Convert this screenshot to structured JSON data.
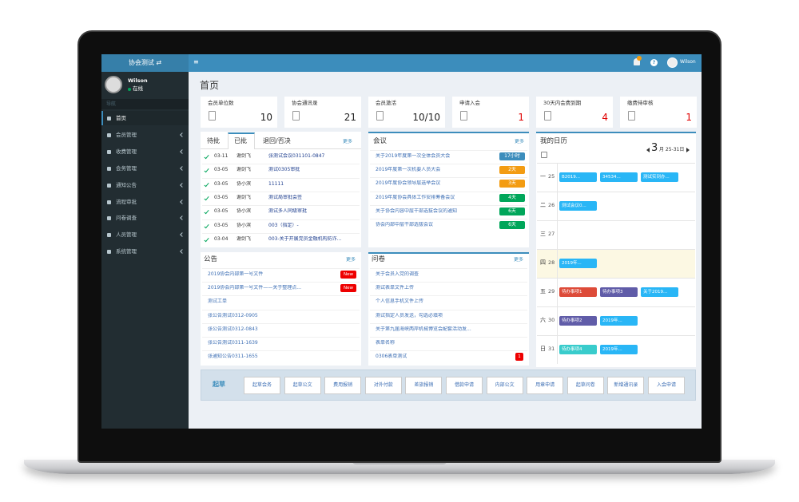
{
  "topbar": {
    "brand": "协会测试 ⇄",
    "menu_icon": "≡",
    "help_icon": "?",
    "user": "Wilson"
  },
  "sidebar": {
    "user": "Wilson",
    "status": "在线",
    "section": "导航",
    "menu": [
      "首页",
      "会员管理",
      "收费管理",
      "会务管理",
      "通知公告",
      "流程审批",
      "问卷调查",
      "人员管理",
      "系统管理"
    ]
  },
  "page_title": "首页",
  "stats": [
    {
      "label": "会员单位数",
      "value": "10",
      "color": "#222222"
    },
    {
      "label": "协会通讯录",
      "value": "21",
      "color": "#222222"
    },
    {
      "label": "会员激活",
      "value": "10/10",
      "color": "#222222"
    },
    {
      "label": "申请入会",
      "value": "1",
      "color": "#e00000"
    },
    {
      "label": "30天内会费到期",
      "value": "4",
      "color": "#e00000"
    },
    {
      "label": "缴费待审核",
      "value": "1",
      "color": "#e00000"
    }
  ],
  "approvals": {
    "tabs": [
      "待批",
      "已批",
      "退回/否决"
    ],
    "more": "更多",
    "rows": [
      {
        "date": "03-11",
        "person": "谢剑飞",
        "title": "张测试会议031101-0847"
      },
      {
        "date": "03-05",
        "person": "谢剑飞",
        "title": "测试0305审批"
      },
      {
        "date": "03-05",
        "person": "协小滨",
        "title": "11111"
      },
      {
        "date": "03-05",
        "person": "谢剑飞",
        "title": "测试局审批会签"
      },
      {
        "date": "03-05",
        "person": "协小滨",
        "title": "测试多人同级审批"
      },
      {
        "date": "03-05",
        "person": "协小滨",
        "title": "003（指定）-"
      },
      {
        "date": "03-04",
        "person": "谢剑飞",
        "title": "003-关于开展党员金融机构防诈..."
      }
    ]
  },
  "meetings": {
    "title": "会议",
    "more": "更多",
    "rows": [
      {
        "title": "关于2019年度第一次全体会员大会",
        "badge": "17小时",
        "color": "#3c8dbc"
      },
      {
        "title": "2019年度第一次机要人员大会",
        "badge": "2天",
        "color": "#f39c12"
      },
      {
        "title": "2019年度协会领导层选举会议",
        "badge": "3天",
        "color": "#f39c12"
      },
      {
        "title": "2019年度协会具体工作安排筹备会议",
        "badge": "4天",
        "color": "#00a65a"
      },
      {
        "title": "关于协会内容中层干部选拔会议的通知",
        "badge": "6天",
        "color": "#00a65a"
      },
      {
        "title": "协会内部中层干部选拔会议",
        "badge": "6天",
        "color": "#00a65a"
      }
    ]
  },
  "calendar": {
    "title": "我的日历",
    "month": "3",
    "range": "月 25-31日",
    "days": [
      {
        "weekday": "一",
        "day": "25",
        "highlight": false,
        "events": [
          {
            "text": "B2019...",
            "color": "#29b6f6"
          },
          {
            "text": "34534...",
            "color": "#29b6f6"
          },
          {
            "text": "测试实到办...",
            "color": "#29b6f6"
          }
        ]
      },
      {
        "weekday": "二",
        "day": "26",
        "highlight": false,
        "events": [
          {
            "text": "测试会议0...",
            "color": "#29b6f6"
          }
        ]
      },
      {
        "weekday": "三",
        "day": "27",
        "highlight": false,
        "events": []
      },
      {
        "weekday": "四",
        "day": "28",
        "highlight": true,
        "events": [
          {
            "text": "2019年...",
            "color": "#29b6f6"
          }
        ]
      },
      {
        "weekday": "五",
        "day": "29",
        "highlight": false,
        "events": [
          {
            "text": "待办事项1",
            "color": "#dd4b39"
          },
          {
            "text": "待办事项3",
            "color": "#605ca8"
          },
          {
            "text": "关于2019...",
            "color": "#29b6f6"
          }
        ]
      },
      {
        "weekday": "六",
        "day": "30",
        "highlight": false,
        "events": [
          {
            "text": "待办事项2",
            "color": "#605ca8"
          },
          {
            "text": "2019年...",
            "color": "#29b6f6"
          }
        ]
      },
      {
        "weekday": "日",
        "day": "31",
        "highlight": false,
        "events": [
          {
            "text": "待办事项4",
            "color": "#39cccc"
          },
          {
            "text": "2019年...",
            "color": "#29b6f6"
          }
        ]
      }
    ]
  },
  "notices": {
    "title": "公告",
    "more": "更多",
    "rows": [
      {
        "title": "2019协会内部第一号文件",
        "badge": "New"
      },
      {
        "title": "2019协会内部第一号文件——关于整理点...",
        "badge": "New"
      },
      {
        "title": "测试工单"
      },
      {
        "title": "张公告测试0312-0905"
      },
      {
        "title": "张公告测试0312-0843"
      },
      {
        "title": "张公告测试0311-1639"
      },
      {
        "title": "张通知公告0311-1655"
      }
    ]
  },
  "surveys": {
    "title": "问卷",
    "more": "更多",
    "rows": [
      {
        "title": "关于会员入党的调查"
      },
      {
        "title": "测试表单文件上传"
      },
      {
        "title": "个人信息手机文件上传"
      },
      {
        "title": "测试指定人员发送，勾选必填项"
      },
      {
        "title": "关于第九届海峡两岸机械博览会配套活动发..."
      },
      {
        "title": "表单名称"
      },
      {
        "title": "0306表单测试",
        "badge": "1"
      }
    ]
  },
  "quick": {
    "label": "起草",
    "buttons": [
      "起草会务",
      "起草公文",
      "费用报销",
      "对外付款",
      "差旅报销",
      "借款申请",
      "内部公文",
      "用章申请",
      "起草问卷",
      "新增通讯录",
      "入会申请"
    ]
  }
}
